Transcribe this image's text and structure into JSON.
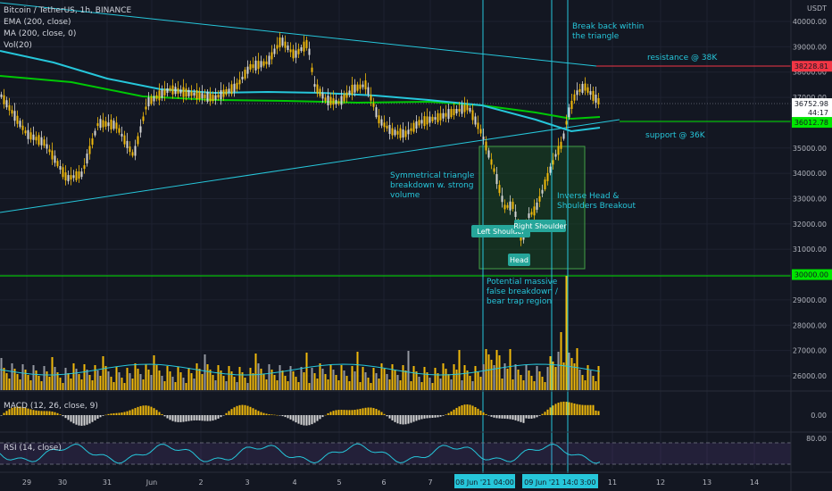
{
  "legend": {
    "symbol": "Bitcoin / TetherUS, 1h, BINANCE",
    "ema": "EMA (200, close)",
    "ma": "MA (200, close, 0)",
    "vol": "Vol(20)"
  },
  "indicator_labels": {
    "macd": "MACD (12, 26, close, 9)",
    "rsi": "RSI (14, close)"
  },
  "currency": "USDT",
  "colors": {
    "background": "#131722",
    "candle": "#f0b90b",
    "ema": "#00c805",
    "ma": "#26c6da",
    "trendline": "#26c6da",
    "resistance": "#f23645",
    "support": "#00e600",
    "annotation_text": "#26c6da",
    "pattern_box": "#1b5e20"
  },
  "chart_data": {
    "type": "candlestick",
    "price_axis": {
      "ticks": [
        40000,
        39000,
        38000,
        37000,
        36000,
        35000,
        34000,
        33000,
        32000,
        31000,
        30000,
        29000,
        28000,
        27000,
        26000
      ],
      "tick_labels": [
        "40000.00",
        "39000.00",
        "38000.00",
        "37000.00",
        "36000.00",
        "35000.00",
        "34000.00",
        "33000.00",
        "32000.00",
        "31000.00",
        "30000.00",
        "29000.00",
        "28000.00",
        "27000.00",
        "26000.00"
      ],
      "range": [
        25500,
        40500
      ]
    },
    "time_axis": {
      "labels": [
        "29",
        "30",
        "31",
        "Jun",
        "2",
        "3",
        "4",
        "5",
        "6",
        "7",
        "11",
        "12",
        "13",
        "14"
      ],
      "highlight_labels": [
        "08 Jun '21   04:00",
        "09 Jun '21   14:00",
        "3:00"
      ]
    },
    "price_labels": [
      {
        "value": 38228.81,
        "text": "38228.81",
        "color": "#f23645"
      },
      {
        "value": 36752.98,
        "text": "36752.98",
        "sub": "44:17",
        "color": "#ffffff"
      },
      {
        "value": 36012.78,
        "text": "36012.78",
        "color": "#00e600"
      },
      {
        "value": 30000.0,
        "text": "30000.00",
        "color": "#00e600"
      }
    ],
    "macd_tick": "0.00",
    "rsi_tick": "80.00",
    "annotations": [
      {
        "text": "Break back within",
        "line": 1
      },
      {
        "text": "the triangle",
        "line": 2
      },
      {
        "text": "resistance @ 38K"
      },
      {
        "text": "support @ 36K"
      },
      {
        "text": "Symmetrical triangle",
        "line": 1
      },
      {
        "text": "breakdown w. strong",
        "line": 2
      },
      {
        "text": "volume",
        "line": 3
      },
      {
        "text": "Inverse Head &",
        "line": 1
      },
      {
        "text": "Shoulders Breakout",
        "line": 2
      },
      {
        "text": "Potential massive",
        "line": 1
      },
      {
        "text": "false breakdown /",
        "line": 2
      },
      {
        "text": "bear trap region",
        "line": 3
      }
    ],
    "pattern_labels": [
      "Left Shoulder",
      "Right Shoulder",
      "Head"
    ]
  }
}
